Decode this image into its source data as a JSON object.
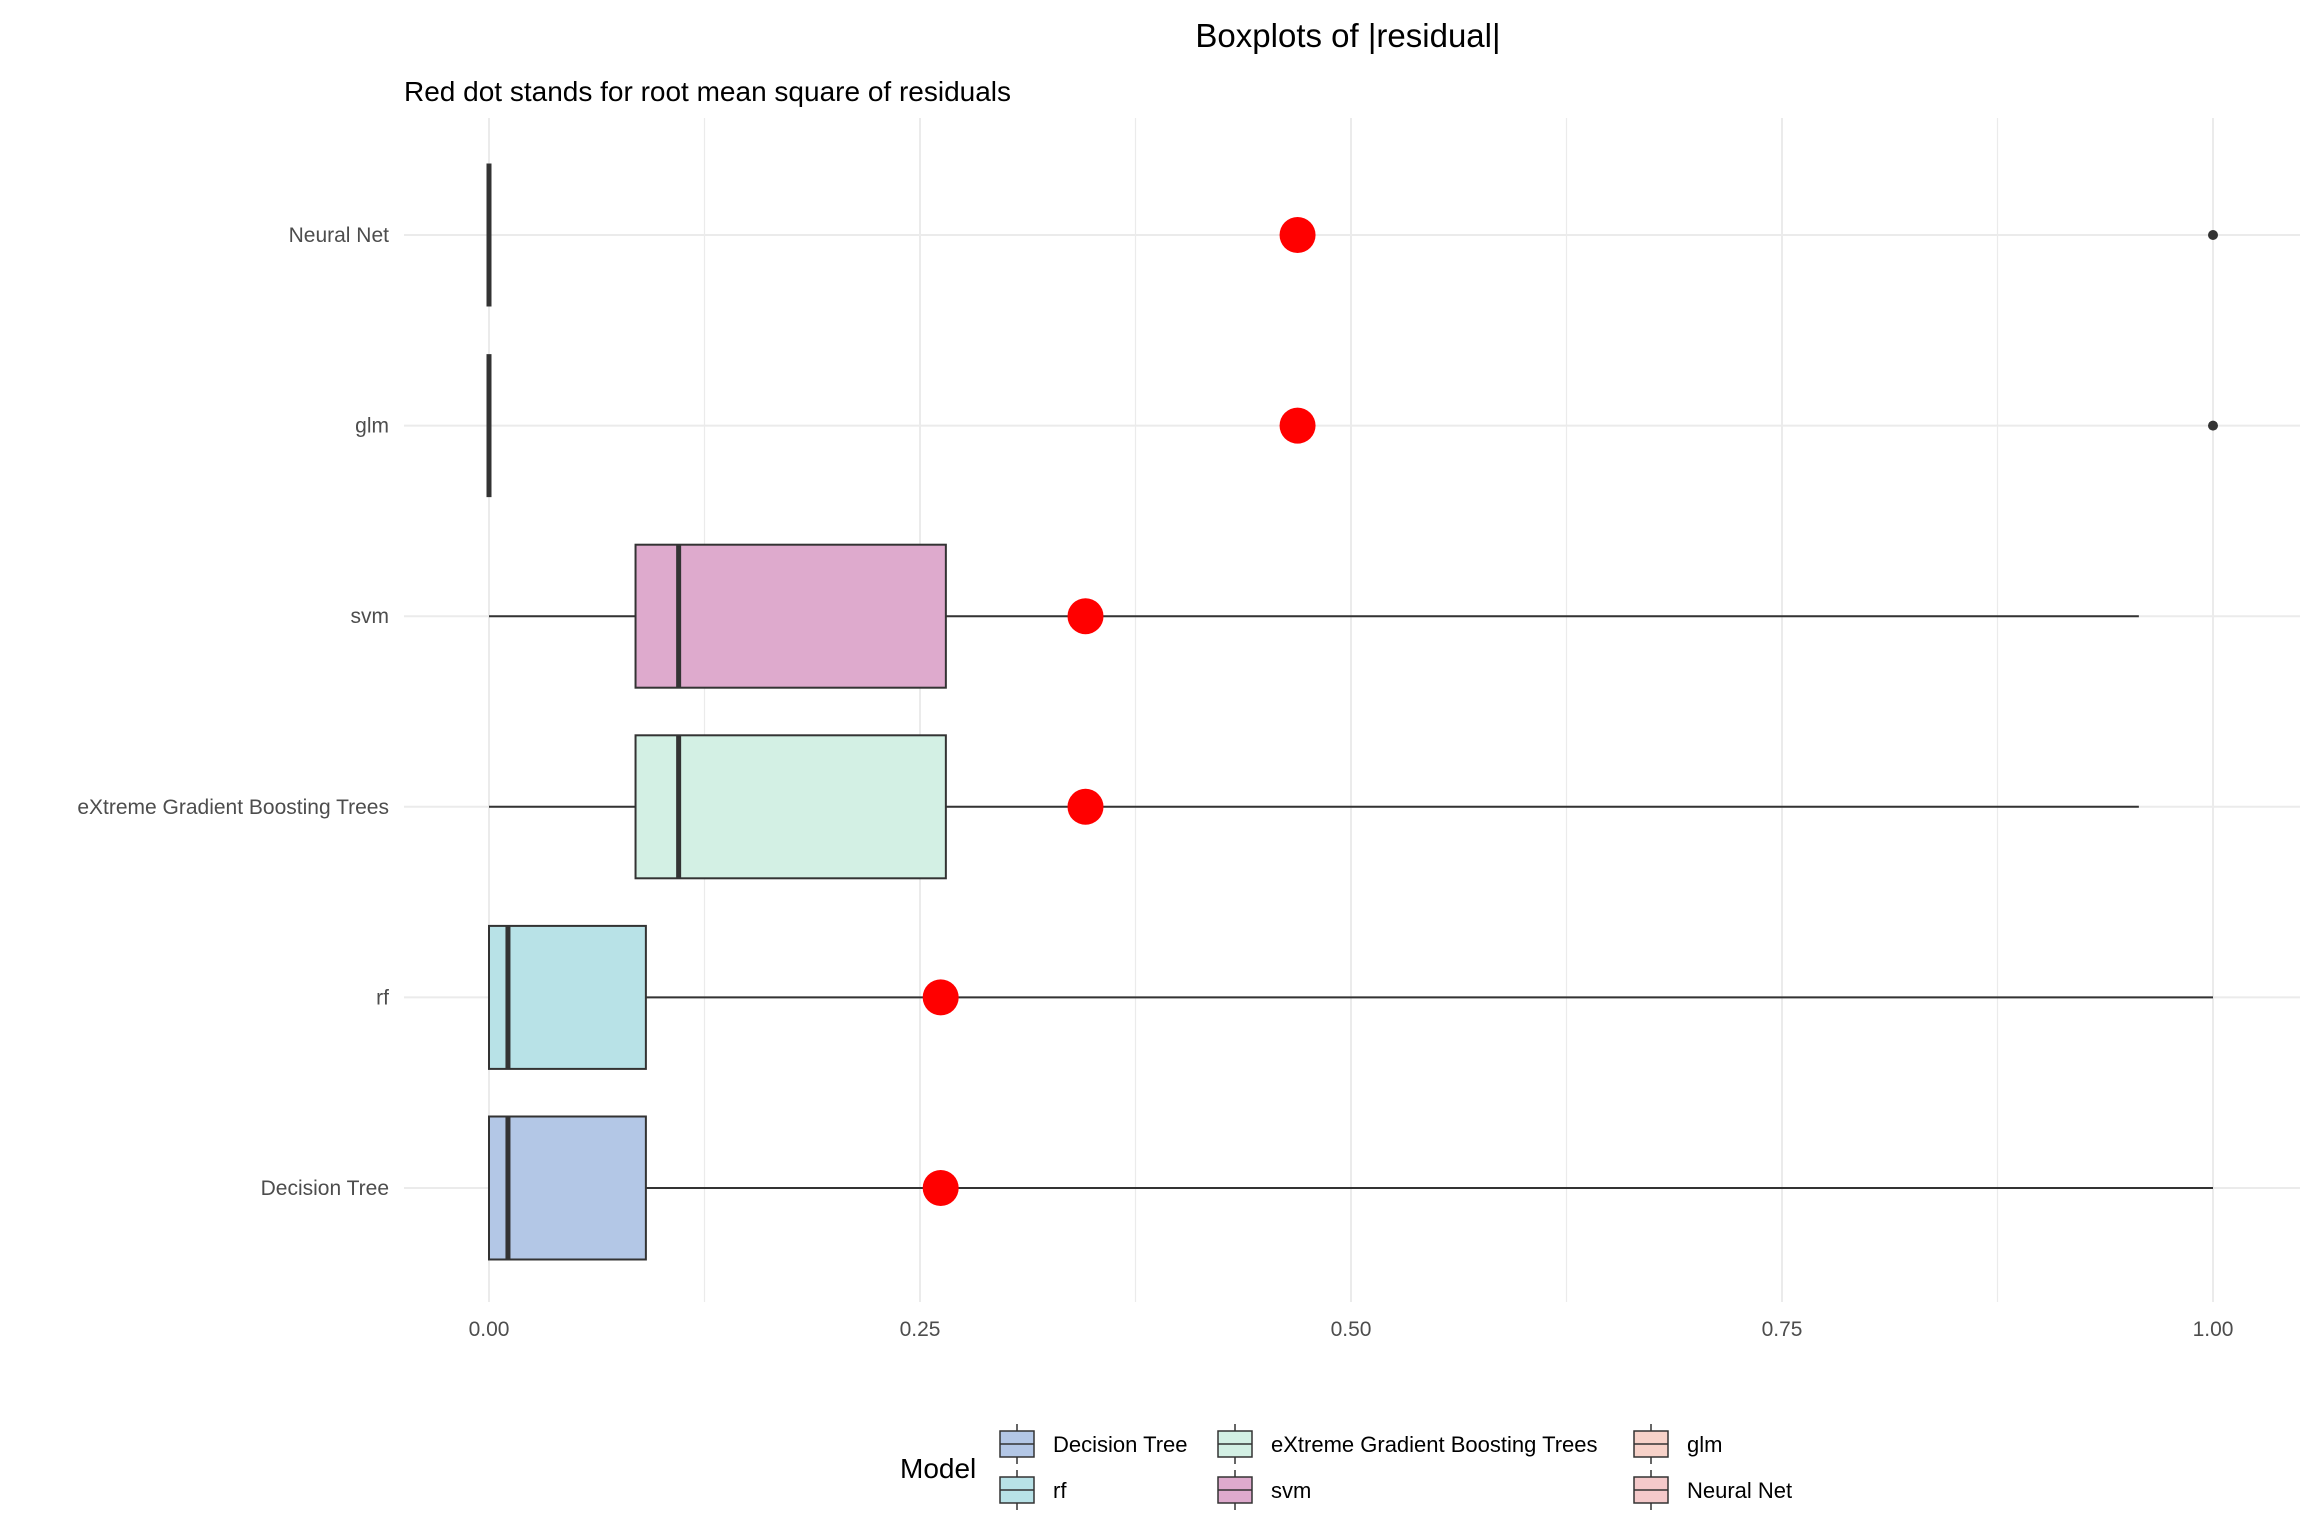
{
  "chart_data": {
    "type": "boxplot",
    "title": "Boxplots of |residual|",
    "subtitle": "Red dot stands for root mean square of residuals",
    "xlim": [
      -0.05,
      1.05
    ],
    "x_ticks": [
      "0.00",
      "0.25",
      "0.50",
      "0.75",
      "1.00"
    ],
    "x_tick_values": [
      0,
      0.25,
      0.5,
      0.75,
      1.0
    ],
    "grid": true,
    "legend_position": "bottom",
    "legend_title": "Model",
    "rms_color": "#ff0000",
    "categories": [
      "Neural Net",
      "glm",
      "svm",
      "eXtreme Gradient Boosting Trees",
      "rf",
      "Decision Tree"
    ],
    "series": [
      {
        "name": "Neural Net",
        "color": "#f4c9ca",
        "min": 0.0,
        "q1": 0.0,
        "median": 0.0,
        "q3": 0.0,
        "max": 0.0,
        "outliers": [
          1.0
        ],
        "rms": 0.469
      },
      {
        "name": "glm",
        "color": "#f7d2c9",
        "min": 0.0,
        "q1": 0.0,
        "median": 0.0,
        "q3": 0.0,
        "max": 0.0,
        "outliers": [
          1.0
        ],
        "rms": 0.469
      },
      {
        "name": "svm",
        "color": "#deaacd",
        "min": 0.0,
        "q1": 0.085,
        "median": 0.11,
        "q3": 0.265,
        "max": 0.957,
        "outliers": [],
        "rms": 0.346
      },
      {
        "name": "eXtreme Gradient Boosting Trees",
        "color": "#d3f0e4",
        "min": 0.0,
        "q1": 0.085,
        "median": 0.11,
        "q3": 0.265,
        "max": 0.957,
        "outliers": [],
        "rms": 0.346
      },
      {
        "name": "rf",
        "color": "#b8e2e7",
        "min": 0.0,
        "q1": 0.0,
        "median": 0.011,
        "q3": 0.091,
        "max": 1.0,
        "outliers": [],
        "rms": 0.262
      },
      {
        "name": "Decision Tree",
        "color": "#b3c7e6",
        "min": 0.0,
        "q1": 0.0,
        "median": 0.011,
        "q3": 0.091,
        "max": 1.0,
        "outliers": [],
        "rms": 0.262
      }
    ],
    "legend_items": [
      {
        "name": "Decision Tree",
        "color": "#b3c7e6"
      },
      {
        "name": "rf",
        "color": "#b8e2e7"
      },
      {
        "name": "eXtreme Gradient Boosting Trees",
        "color": "#d3f0e4"
      },
      {
        "name": "svm",
        "color": "#deaacd"
      },
      {
        "name": "glm",
        "color": "#f7d2c9"
      },
      {
        "name": "Neural Net",
        "color": "#f4c9ca"
      }
    ]
  }
}
